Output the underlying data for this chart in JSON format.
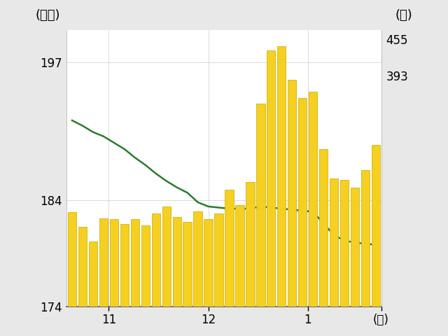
{
  "bar_volumes": [
    160,
    135,
    110,
    150,
    148,
    140,
    148,
    138,
    158,
    170,
    152,
    144,
    162,
    148,
    158,
    198,
    172,
    212,
    345,
    435,
    442,
    385,
    355,
    365,
    268,
    218,
    215,
    202,
    232,
    275
  ],
  "line_values": [
    191.5,
    191.0,
    190.4,
    190.0,
    189.4,
    188.8,
    188.0,
    187.3,
    186.5,
    185.8,
    185.2,
    184.7,
    183.8,
    183.4,
    183.3,
    183.2,
    183.2,
    183.2,
    183.4,
    183.3,
    183.2,
    183.1,
    183.0,
    182.9,
    181.8,
    180.7,
    180.2,
    180.0,
    179.9,
    179.8
  ],
  "bar_color": "#F5D020",
  "bar_edge_color": "#C8AA00",
  "line_color": "#2D7A2D",
  "left_ylabel": "(万円)",
  "right_ylabel": "(台)",
  "xlabel": "(月)",
  "left_ylim": [
    174,
    200
  ],
  "right_ylim": [
    0,
    470
  ],
  "left_yticks": [
    174,
    184,
    197
  ],
  "right_yticks": [
    393,
    455
  ],
  "left_ytick_labels": [
    "174",
    "184",
    "197"
  ],
  "right_ytick_labels": [
    "393",
    "455"
  ],
  "n_points": 30,
  "fig_bg_color": "#e8e8e8",
  "plot_bg_color": "#ffffff",
  "grid_color": "#cccccc",
  "line_width": 1.8,
  "bar_width": 0.82
}
